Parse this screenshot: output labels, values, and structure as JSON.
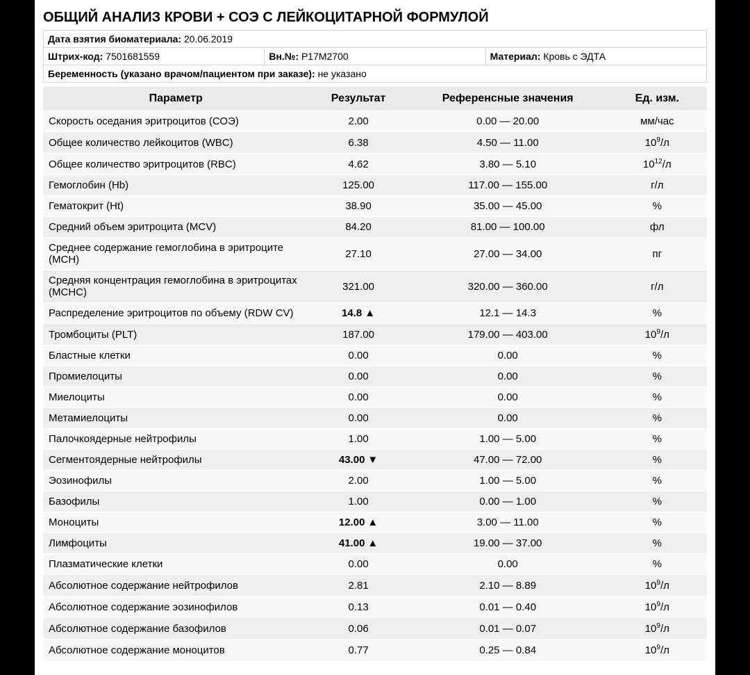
{
  "title": "ОБЩИЙ АНАЛИЗ КРОВИ + СОЭ С ЛЕЙКОЦИТАРНОЙ ФОРМУЛОЙ",
  "meta": {
    "date_label": "Дата взятия биоматериала:",
    "date_value": "20.06.2019",
    "barcode_label": "Штрих-код:",
    "barcode_value": "7501681559",
    "vn_label": "Вн.№:",
    "vn_value": "P17M2700",
    "material_label": "Материал:",
    "material_value": "Кровь с ЭДТА",
    "pregnancy_label": "Беременность (указано врачом/пациентом при заказе):",
    "pregnancy_value": "не указано"
  },
  "columns": {
    "param": "Параметр",
    "result": "Результат",
    "ref": "Референсные значения",
    "unit": "Ед. изм."
  },
  "rows": [
    {
      "param": "Скорость оседания эритроцитов (СОЭ)",
      "result": "2.00",
      "flag": "",
      "ref": "0.00 — 20.00",
      "unit": "мм/час"
    },
    {
      "param": "Общее количество лейкоцитов (WBC)",
      "result": "6.38",
      "flag": "",
      "ref": "4.50 — 11.00",
      "unit": "10^9/л"
    },
    {
      "param": "Общее количество эритроцитов (RBC)",
      "result": "4.62",
      "flag": "",
      "ref": "3.80 — 5.10",
      "unit": "10^12/л"
    },
    {
      "param": "Гемоглобин (Hb)",
      "result": "125.00",
      "flag": "",
      "ref": "117.00 — 155.00",
      "unit": "г/л"
    },
    {
      "param": "Гематокрит (Ht)",
      "result": "38.90",
      "flag": "",
      "ref": "35.00 — 45.00",
      "unit": "%"
    },
    {
      "param": "Средний объем эритроцита (MCV)",
      "result": "84.20",
      "flag": "",
      "ref": "81.00 — 100.00",
      "unit": "фл"
    },
    {
      "param": "Среднее содержание гемоглобина в эритроците (MCH)",
      "result": "27.10",
      "flag": "",
      "ref": "27.00 — 34.00",
      "unit": "пг"
    },
    {
      "param": "Средняя концентрация гемоглобина в эритроцитах (MCHC)",
      "result": "321.00",
      "flag": "",
      "ref": "320.00 — 360.00",
      "unit": "г/л"
    },
    {
      "param": "Распределение эритроцитов по объему (RDW CV)",
      "result": "14.8",
      "flag": "up",
      "ref": "12.1 — 14.3",
      "unit": "%"
    },
    {
      "param": "Тромбоциты (PLT)",
      "result": "187.00",
      "flag": "",
      "ref": "179.00 — 403.00",
      "unit": "10^9/л"
    },
    {
      "param": "Бластные клетки",
      "result": "0.00",
      "flag": "",
      "ref": "0.00",
      "unit": "%"
    },
    {
      "param": "Промиелоциты",
      "result": "0.00",
      "flag": "",
      "ref": "0.00",
      "unit": "%"
    },
    {
      "param": "Миелоциты",
      "result": "0.00",
      "flag": "",
      "ref": "0.00",
      "unit": "%"
    },
    {
      "param": "Метамиелоциты",
      "result": "0.00",
      "flag": "",
      "ref": "0.00",
      "unit": "%"
    },
    {
      "param": "Палочкоядерные нейтрофилы",
      "result": "1.00",
      "flag": "",
      "ref": "1.00 — 5.00",
      "unit": "%"
    },
    {
      "param": "Сегментоядерные нейтрофилы",
      "result": "43.00",
      "flag": "down",
      "ref": "47.00 — 72.00",
      "unit": "%"
    },
    {
      "param": "Эозинофилы",
      "result": "2.00",
      "flag": "",
      "ref": "1.00 — 5.00",
      "unit": "%"
    },
    {
      "param": "Базофилы",
      "result": "1.00",
      "flag": "",
      "ref": "0.00 — 1.00",
      "unit": "%"
    },
    {
      "param": "Моноциты",
      "result": "12.00",
      "flag": "up",
      "ref": "3.00 — 11.00",
      "unit": "%"
    },
    {
      "param": "Лимфоциты",
      "result": "41.00",
      "flag": "up",
      "ref": "19.00 — 37.00",
      "unit": "%"
    },
    {
      "param": "Плазматические клетки",
      "result": "0.00",
      "flag": "",
      "ref": "0.00",
      "unit": "%"
    },
    {
      "param": "Абсолютное содержание нейтрофилов",
      "result": "2.81",
      "flag": "",
      "ref": "2.10 — 8.89",
      "unit": "10^9/л"
    },
    {
      "param": "Абсолютное содержание эозинофилов",
      "result": "0.13",
      "flag": "",
      "ref": "0.01 — 0.40",
      "unit": "10^9/л"
    },
    {
      "param": "Абсолютное содержание базофилов",
      "result": "0.06",
      "flag": "",
      "ref": "0.01 — 0.07",
      "unit": "10^9/л"
    },
    {
      "param": "Абсолютное содержание моноцитов",
      "result": "0.77",
      "flag": "",
      "ref": "0.25 — 0.84",
      "unit": "10^9/л"
    }
  ],
  "style": {
    "header_bg": "#eaeaea",
    "row_odd_bg": "#f7f7f7",
    "row_even_bg": "#eeeeee",
    "border_color": "#d5d5d5",
    "font_family": "Arial",
    "title_fontsize": 20,
    "header_fontsize": 16,
    "cell_fontsize": 15,
    "arrow_up": "▲",
    "arrow_down": "▼",
    "col_widths_pct": [
      40,
      15,
      30,
      15
    ]
  }
}
